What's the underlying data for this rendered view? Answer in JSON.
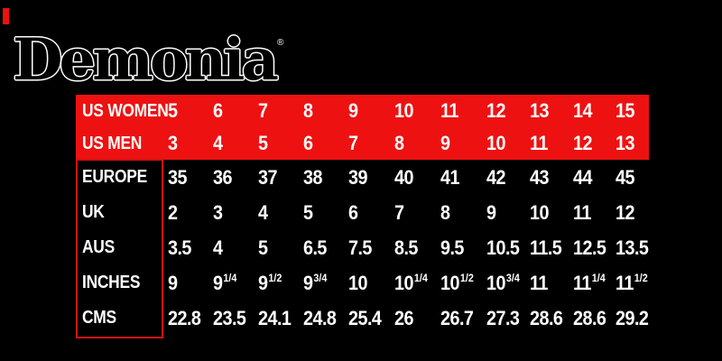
{
  "brand": {
    "name": "Demonia",
    "registered": "®"
  },
  "colors": {
    "background": "#000000",
    "band_red": "#ee1111",
    "box_border_red": "#cf1212",
    "text": "#ffffff"
  },
  "chart_data": {
    "type": "table",
    "title": "Demonia shoe size conversion chart",
    "rows": [
      {
        "label": "US WOMEN",
        "values": [
          "5",
          "6",
          "7",
          "8",
          "9",
          "10",
          "11",
          "12",
          "13",
          "14",
          "15"
        ]
      },
      {
        "label": "US MEN",
        "values": [
          "3",
          "4",
          "5",
          "6",
          "7",
          "8",
          "9",
          "10",
          "11",
          "12",
          "13"
        ]
      },
      {
        "label": "EUROPE",
        "values": [
          "35",
          "36",
          "37",
          "38",
          "39",
          "40",
          "41",
          "42",
          "43",
          "44",
          "45"
        ]
      },
      {
        "label": "UK",
        "values": [
          "2",
          "3",
          "4",
          "5",
          "6",
          "7",
          "8",
          "9",
          "10",
          "11",
          "12"
        ]
      },
      {
        "label": "AUS",
        "values": [
          "3.5",
          "4",
          "5",
          "6.5",
          "7.5",
          "8.5",
          "9.5",
          "10.5",
          "11.5",
          "12.5",
          "13.5"
        ]
      },
      {
        "label": "INCHES",
        "values": [
          "9",
          "9 1/4",
          "9 1/2",
          "9 3/4",
          "10",
          "10 1/4",
          "10 1/2",
          "10 3/4",
          "11",
          "11 1/4",
          "11 1/2"
        ]
      },
      {
        "label": "CMS",
        "values": [
          "22.8",
          "23.5",
          "24.1",
          "24.8",
          "25.4",
          "26",
          "26.7",
          "27.3",
          "28.6",
          "28.6",
          "29.2"
        ]
      }
    ]
  },
  "inches_cells": [
    {
      "b": "9"
    },
    {
      "b": "9",
      "s": "1/4"
    },
    {
      "b": "9",
      "s": "1/2"
    },
    {
      "b": "9",
      "s": "3/4"
    },
    {
      "b": "10"
    },
    {
      "b": "10",
      "s": "1/4"
    },
    {
      "b": "10",
      "s": "1/2"
    },
    {
      "b": "10",
      "s": "3/4"
    },
    {
      "b": "11"
    },
    {
      "b": "11",
      "s": "1/4"
    },
    {
      "b": "11",
      "s": "1/2"
    }
  ]
}
